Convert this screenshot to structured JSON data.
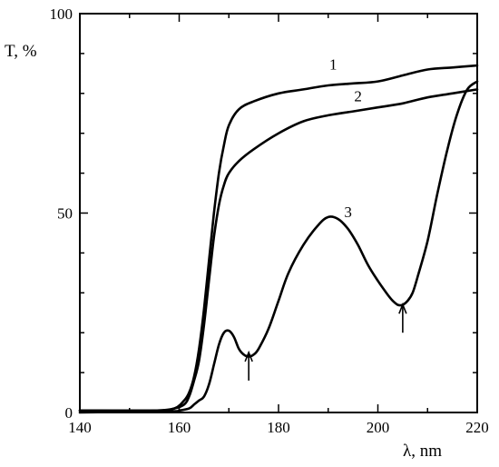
{
  "chart_data": {
    "type": "line",
    "xlabel": "λ, nm",
    "ylabel": "T, %",
    "xlim": [
      140,
      220
    ],
    "ylim": [
      0,
      100
    ],
    "x_ticks": [
      140,
      160,
      180,
      200,
      220
    ],
    "y_ticks": [
      0,
      50,
      100
    ],
    "x_ticks_labeled": [
      "140",
      "160",
      "180",
      "200",
      "220"
    ],
    "y_ticks_labeled": [
      "0",
      "50",
      "100"
    ],
    "grid": false,
    "series": [
      {
        "name": "1",
        "x": [
          140,
          155,
          159,
          161,
          162,
          163,
          164,
          165,
          166,
          167,
          168,
          169,
          170,
          172,
          175,
          180,
          185,
          190,
          195,
          200,
          205,
          210,
          215,
          220
        ],
        "y": [
          0.5,
          0.5,
          1,
          3,
          5,
          9,
          16,
          26,
          38,
          50,
          60,
          67,
          72,
          76,
          78,
          80,
          81,
          82,
          82.5,
          83,
          84.5,
          86,
          86.5,
          87
        ]
      },
      {
        "name": "2",
        "x": [
          140,
          155,
          159,
          161,
          162,
          163,
          164,
          165,
          166,
          167,
          168,
          169,
          170,
          172,
          175,
          180,
          185,
          190,
          195,
          200,
          205,
          210,
          215,
          220
        ],
        "y": [
          0.5,
          0.5,
          1,
          2,
          4,
          8,
          13,
          22,
          33,
          44,
          52,
          57,
          60,
          63,
          66,
          70,
          73,
          74.5,
          75.5,
          76.5,
          77.5,
          79,
          80,
          81
        ]
      },
      {
        "name": "3",
        "x": [
          140,
          158,
          160,
          162,
          163,
          164,
          165,
          166,
          167,
          168,
          169,
          170,
          171,
          172,
          173,
          174,
          175,
          176,
          178,
          180,
          182,
          185,
          188,
          190,
          192,
          194,
          196,
          198,
          200,
          202,
          203,
          204,
          205,
          206,
          207,
          208,
          210,
          212,
          214,
          216,
          218,
          220
        ],
        "y": [
          0,
          0.3,
          0.5,
          1,
          2,
          3,
          4,
          7,
          12,
          17,
          20,
          20.5,
          19,
          16,
          14.5,
          14,
          14.5,
          16,
          21,
          28,
          35,
          42,
          47,
          49,
          48.5,
          46,
          42,
          37,
          33,
          29.5,
          28,
          27,
          27,
          28,
          30,
          34,
          43,
          55,
          66,
          75,
          81,
          83
        ]
      }
    ],
    "annotations": [
      {
        "text": "1",
        "x": 191,
        "y": 86
      },
      {
        "text": "2",
        "x": 196,
        "y": 78
      },
      {
        "text": "3",
        "x": 194,
        "y": 49
      },
      {
        "text": "↑",
        "x": 174,
        "y": 8
      },
      {
        "text": "↑",
        "x": 205,
        "y": 20
      }
    ]
  }
}
